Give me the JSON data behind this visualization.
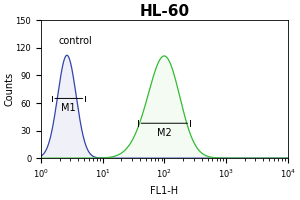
{
  "title": "HL-60",
  "xlabel": "FL1-H",
  "ylabel": "Counts",
  "xlim_log": [
    0,
    4
  ],
  "ylim": [
    0,
    150
  ],
  "yticks": [
    0,
    30,
    60,
    90,
    120,
    150
  ],
  "control_label": "control",
  "m1_label": "M1",
  "m2_label": "M2",
  "blue_color": "#3344aa",
  "green_color": "#33bb33",
  "blue_peak_log": 0.42,
  "blue_peak_height": 112,
  "blue_sigma_log": 0.15,
  "green_peak_log1": 1.92,
  "green_peak_log2": 2.05,
  "green_peak_height1": 60,
  "green_peak_height2": 55,
  "green_sigma_log": 0.28,
  "m1_x1_log": 0.18,
  "m1_x2_log": 0.72,
  "m1_y": 65,
  "m2_x1_log": 1.58,
  "m2_x2_log": 2.42,
  "m2_y": 38,
  "bg_color": "#ffffff",
  "fig_bg_color": "#ffffff",
  "title_fontsize": 11,
  "axis_fontsize": 6,
  "label_fontsize": 7,
  "annotation_fontsize": 7
}
